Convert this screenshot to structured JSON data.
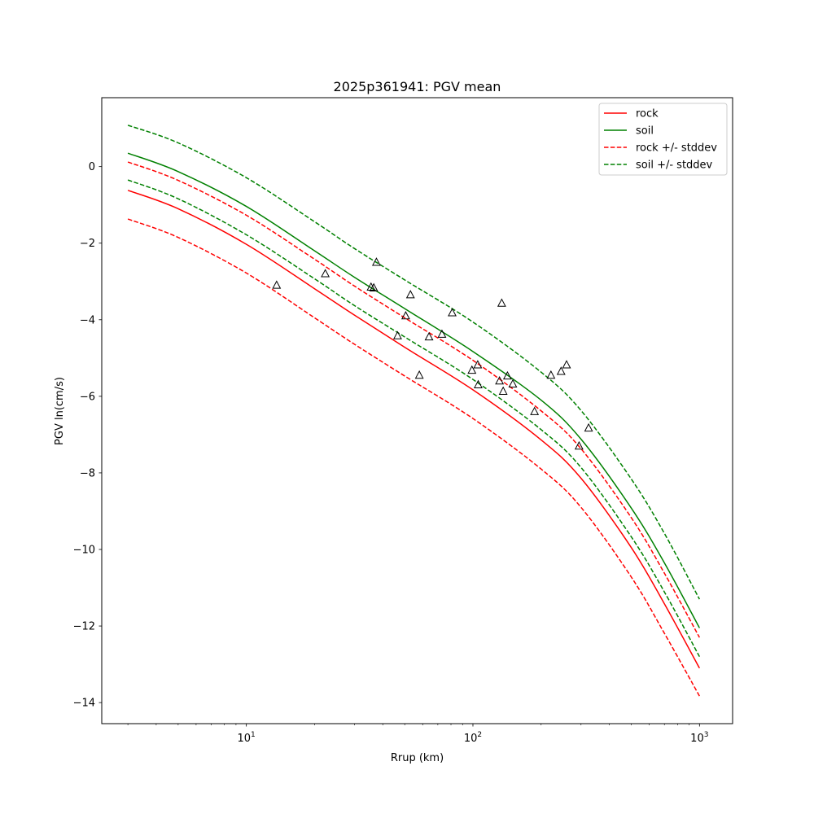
{
  "chart_data": {
    "type": "line",
    "title": "2025p361941: PGV mean",
    "xlabel": "Rrup (km)",
    "ylabel": "PGV ln(cm/s)",
    "xscale": "log",
    "xlim": [
      2.3,
      1400
    ],
    "ylim": [
      -14.55,
      1.8
    ],
    "grid": false,
    "legend_position": "top-right",
    "x_tick_labels": [
      {
        "value": 10,
        "base": "10",
        "exp": "1"
      },
      {
        "value": 100,
        "base": "10",
        "exp": "2"
      },
      {
        "value": 1000,
        "base": "10",
        "exp": "3"
      }
    ],
    "y_ticks": [
      0,
      -2,
      -4,
      -6,
      -8,
      -10,
      -12,
      -14
    ],
    "y_tick_labels": [
      "0",
      "−2",
      "−4",
      "−6",
      "−8",
      "−10",
      "−12",
      "−14"
    ],
    "x": [
      3,
      5,
      10,
      20,
      30,
      50,
      100,
      200,
      300,
      500,
      700,
      1000
    ],
    "series": [
      {
        "name": "rock",
        "color": "#ff0000",
        "style": "solid",
        "values": [
          -0.62,
          -1.1,
          -2.03,
          -3.19,
          -3.88,
          -4.72,
          -5.83,
          -7.14,
          -8.14,
          -9.95,
          -11.42,
          -13.1
        ]
      },
      {
        "name": "soil",
        "color": "#008000",
        "style": "solid",
        "values": [
          0.35,
          -0.13,
          -1.04,
          -2.2,
          -2.89,
          -3.71,
          -4.83,
          -6.1,
          -7.12,
          -8.92,
          -10.35,
          -12.05
        ]
      },
      {
        "name": "rock +/- stddev",
        "color": "#ff0000",
        "style": "dashed",
        "values": [
          0.12,
          -0.36,
          -1.27,
          -2.42,
          -3.12,
          -3.95,
          -5.06,
          -6.38,
          -7.37,
          -9.17,
          -10.62,
          -12.3
        ]
      },
      {
        "name": "rock +/- stddev",
        "color": "#ff0000",
        "style": "dashed",
        "legend": false,
        "values": [
          -1.37,
          -1.85,
          -2.78,
          -3.95,
          -4.64,
          -5.47,
          -6.58,
          -7.9,
          -8.9,
          -10.72,
          -12.19,
          -13.83
        ]
      },
      {
        "name": "soil +/- stddev",
        "color": "#008000",
        "style": "dashed",
        "values": [
          1.08,
          0.62,
          -0.29,
          -1.44,
          -2.14,
          -2.96,
          -4.06,
          -5.37,
          -6.37,
          -8.16,
          -9.58,
          -11.3
        ]
      },
      {
        "name": "soil +/- stddev",
        "color": "#008000",
        "style": "dashed",
        "legend": false,
        "values": [
          -0.35,
          -0.84,
          -1.78,
          -2.93,
          -3.63,
          -4.45,
          -5.56,
          -6.87,
          -7.86,
          -9.67,
          -11.11,
          -12.8
        ]
      }
    ],
    "observations": {
      "marker": "triangle",
      "color": "#000000",
      "points": [
        [
          13.6,
          -3.1
        ],
        [
          22.3,
          -2.8
        ],
        [
          35.5,
          -3.15
        ],
        [
          36.5,
          -3.17
        ],
        [
          37.5,
          -2.5
        ],
        [
          46.5,
          -4.42
        ],
        [
          50.5,
          -3.9
        ],
        [
          53.0,
          -3.35
        ],
        [
          58.0,
          -5.45
        ],
        [
          64.0,
          -4.45
        ],
        [
          73.0,
          -4.38
        ],
        [
          81.0,
          -3.82
        ],
        [
          99.0,
          -5.32
        ],
        [
          105.0,
          -5.18
        ],
        [
          105.5,
          -5.7
        ],
        [
          131.0,
          -5.6
        ],
        [
          134.0,
          -3.57
        ],
        [
          136.0,
          -5.87
        ],
        [
          142.0,
          -5.47
        ],
        [
          150.0,
          -5.68
        ],
        [
          187.0,
          -6.4
        ],
        [
          221.0,
          -5.45
        ],
        [
          245.0,
          -5.35
        ],
        [
          259.0,
          -5.18
        ],
        [
          294.0,
          -7.3
        ],
        [
          324.0,
          -6.83
        ]
      ]
    },
    "legend": [
      {
        "label": "rock",
        "color": "#ff0000",
        "style": "solid"
      },
      {
        "label": "soil",
        "color": "#008000",
        "style": "solid"
      },
      {
        "label": "rock +/- stddev",
        "color": "#ff0000",
        "style": "dashed"
      },
      {
        "label": "soil +/- stddev",
        "color": "#008000",
        "style": "dashed"
      }
    ]
  }
}
